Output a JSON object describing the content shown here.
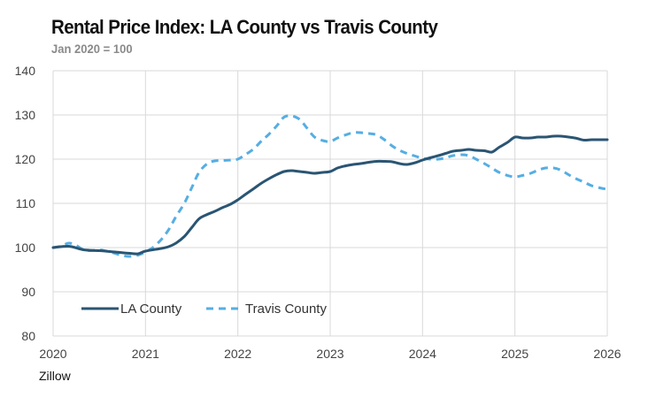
{
  "chart_data": {
    "type": "line",
    "title": "Rental Price Index: LA County vs Travis County",
    "subtitle": "Jan 2020 = 100",
    "source": "Zillow",
    "xlabel": "",
    "ylabel": "",
    "xlim": [
      2020,
      2026
    ],
    "ylim": [
      80,
      140
    ],
    "yticks": [
      80,
      90,
      100,
      110,
      120,
      130,
      140
    ],
    "xticks": [
      2020,
      2021,
      2022,
      2023,
      2024,
      2025,
      2026
    ],
    "grid": true,
    "legend_position": "bottom-left",
    "series": [
      {
        "name": "LA County",
        "color": "#2a5573",
        "style": "solid",
        "x": [
          2020.0,
          2020.17,
          2020.33,
          2020.5,
          2020.67,
          2020.83,
          2020.92,
          2021.0,
          2021.17,
          2021.25,
          2021.33,
          2021.42,
          2021.5,
          2021.58,
          2021.67,
          2021.75,
          2021.83,
          2021.92,
          2022.0,
          2022.08,
          2022.17,
          2022.25,
          2022.33,
          2022.42,
          2022.5,
          2022.58,
          2022.67,
          2022.75,
          2022.83,
          2022.92,
          2023.0,
          2023.08,
          2023.17,
          2023.25,
          2023.33,
          2023.42,
          2023.5,
          2023.58,
          2023.67,
          2023.75,
          2023.83,
          2023.92,
          2024.0,
          2024.08,
          2024.17,
          2024.25,
          2024.33,
          2024.42,
          2024.5,
          2024.58,
          2024.67,
          2024.75,
          2024.83,
          2024.92,
          2025.0,
          2025.08,
          2025.17,
          2025.25,
          2025.33,
          2025.42,
          2025.5,
          2025.58,
          2025.67,
          2025.75,
          2025.83,
          2025.92,
          2026.0
        ],
        "values": [
          100,
          100.3,
          99.5,
          99.3,
          99.0,
          98.7,
          98.6,
          99.2,
          99.8,
          100.2,
          101.0,
          102.5,
          104.5,
          106.5,
          107.5,
          108.2,
          109.0,
          109.8,
          110.8,
          112.0,
          113.3,
          114.5,
          115.5,
          116.5,
          117.2,
          117.4,
          117.2,
          117.0,
          116.8,
          117.0,
          117.2,
          118.0,
          118.5,
          118.8,
          119.0,
          119.3,
          119.5,
          119.5,
          119.4,
          119.0,
          118.8,
          119.2,
          119.8,
          120.3,
          120.8,
          121.3,
          121.8,
          122.0,
          122.2,
          122.0,
          121.9,
          121.6,
          122.7,
          123.8,
          125.0,
          124.8,
          124.8,
          125.0,
          125.0,
          125.2,
          125.2,
          125.0,
          124.7,
          124.3,
          124.4,
          124.4,
          124.4
        ]
      },
      {
        "name": "Travis County",
        "color": "#55aee3",
        "style": "dashed",
        "x": [
          2020.0,
          2020.08,
          2020.17,
          2020.25,
          2020.33,
          2020.42,
          2020.5,
          2020.58,
          2020.67,
          2020.75,
          2020.83,
          2020.92,
          2021.0,
          2021.08,
          2021.17,
          2021.25,
          2021.33,
          2021.42,
          2021.5,
          2021.58,
          2021.67,
          2021.75,
          2021.83,
          2021.92,
          2022.0,
          2022.08,
          2022.17,
          2022.25,
          2022.33,
          2022.42,
          2022.5,
          2022.58,
          2022.67,
          2022.75,
          2022.83,
          2022.92,
          2023.0,
          2023.08,
          2023.17,
          2023.25,
          2023.33,
          2023.42,
          2023.5,
          2023.58,
          2023.67,
          2023.75,
          2023.83,
          2023.92,
          2024.0,
          2024.08,
          2024.17,
          2024.25,
          2024.33,
          2024.42,
          2024.5,
          2024.58,
          2024.67,
          2024.75,
          2024.83,
          2024.92,
          2025.0,
          2025.08,
          2025.17,
          2025.25,
          2025.33,
          2025.42,
          2025.5,
          2025.58,
          2025.67,
          2025.75,
          2025.83,
          2025.92,
          2026.0
        ],
        "values": [
          100,
          100.3,
          101.0,
          100.5,
          99.5,
          99.3,
          99.5,
          99.2,
          98.7,
          98.2,
          98.0,
          98.3,
          99.0,
          100.0,
          101.8,
          104.0,
          107.0,
          110.0,
          113.5,
          117.0,
          119.0,
          119.6,
          119.7,
          119.8,
          120.0,
          121.0,
          122.3,
          124.0,
          125.5,
          127.5,
          129.5,
          129.8,
          129.0,
          127.0,
          125.0,
          124.2,
          124.0,
          124.8,
          125.5,
          126.0,
          126.0,
          125.8,
          125.5,
          124.5,
          123.0,
          122.0,
          121.3,
          120.7,
          120.2,
          120.0,
          120.0,
          120.3,
          120.8,
          121.0,
          120.8,
          120.0,
          119.0,
          118.0,
          117.0,
          116.3,
          116.0,
          116.3,
          116.8,
          117.5,
          118.0,
          118.0,
          117.5,
          116.5,
          115.5,
          114.8,
          114.0,
          113.5,
          113.2
        ]
      }
    ]
  }
}
